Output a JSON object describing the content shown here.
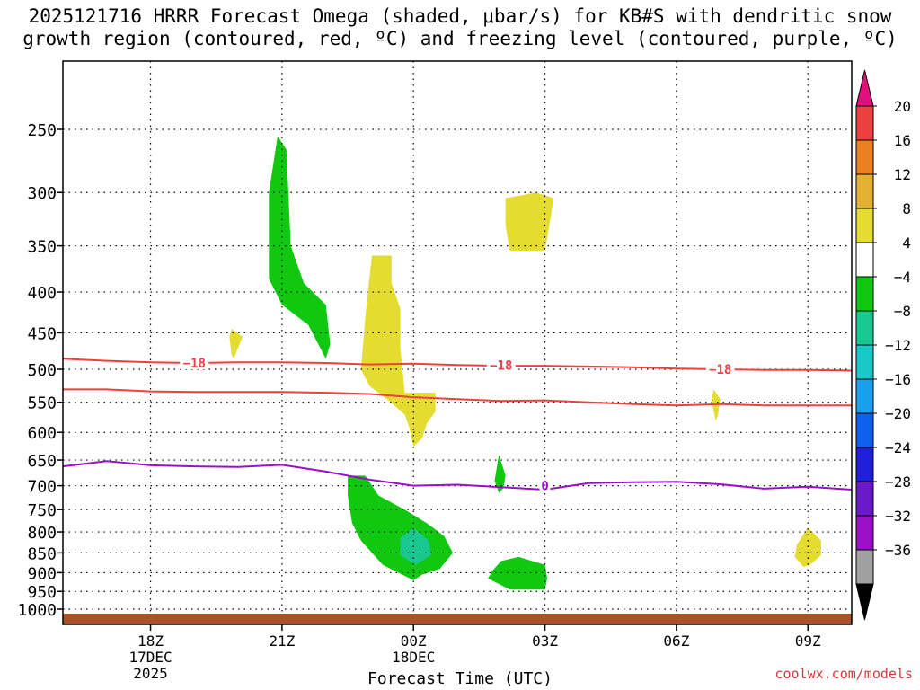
{
  "title": {
    "line1": "2025121716 HRRR Forecast Omega (shaded, μbar/s) for KB#S with dendritic snow",
    "line2": "growth region (contoured, red, ºC) and freezing level (contoured, purple, ºC)"
  },
  "credit": "coolwx.com/models",
  "chart_data": {
    "type": "heatmap",
    "xlabel": "Forecast Time (UTC)",
    "x_ticks": [
      {
        "hour": 18,
        "label": "18Z",
        "sub1": "17DEC",
        "sub2": "2025"
      },
      {
        "hour": 21,
        "label": "21Z",
        "sub1": "",
        "sub2": ""
      },
      {
        "hour": 24,
        "label": "00Z",
        "sub1": "18DEC",
        "sub2": ""
      },
      {
        "hour": 27,
        "label": "03Z",
        "sub1": "",
        "sub2": ""
      },
      {
        "hour": 30,
        "label": "06Z",
        "sub1": "",
        "sub2": ""
      },
      {
        "hour": 33,
        "label": "09Z",
        "sub1": "",
        "sub2": ""
      }
    ],
    "xlim": [
      16,
      34
    ],
    "ylim_hpa": [
      200,
      1030
    ],
    "y_ticks": [
      250,
      300,
      350,
      400,
      450,
      500,
      550,
      600,
      650,
      700,
      750,
      800,
      850,
      900,
      950,
      1000
    ],
    "grid": true,
    "colorbar": {
      "colors": [
        "#000000",
        "#a0a0a0",
        "#9b0fc8",
        "#6a19c8",
        "#2020d8",
        "#1060ee",
        "#18a0ee",
        "#18c8c8",
        "#18c890",
        "#10c810",
        "#ffffff",
        "#e4dc30",
        "#e4b030",
        "#ec8020",
        "#ec4040",
        "#e0107a"
      ],
      "bounds": [
        -36,
        -32,
        -28,
        -24,
        -20,
        -16,
        -12,
        -8,
        -4,
        4,
        8,
        12,
        16,
        20
      ],
      "labels": [
        "20",
        "16",
        "12",
        "8",
        "4",
        "−4",
        "−8",
        "−12",
        "−16",
        "−20",
        "−24",
        "−28",
        "−32",
        "−36"
      ]
    },
    "omega_regions": [
      {
        "name": "green",
        "color": "#10c810",
        "points": [
          [
            20.9,
            255
          ],
          [
            21.1,
            265
          ],
          [
            21.2,
            350
          ],
          [
            21.5,
            390
          ],
          [
            22.0,
            415
          ],
          [
            22.1,
            465
          ],
          [
            22.0,
            485
          ],
          [
            21.6,
            440
          ],
          [
            21.0,
            415
          ],
          [
            20.7,
            385
          ],
          [
            20.7,
            300
          ]
        ]
      },
      {
        "name": "yellow",
        "color": "#e4dc30",
        "points": [
          [
            19.85,
            445
          ],
          [
            20.1,
            455
          ],
          [
            19.9,
            485
          ],
          [
            19.85,
            480
          ],
          [
            19.8,
            455
          ]
        ]
      },
      {
        "name": "yellow",
        "color": "#e4dc30",
        "points": [
          [
            23.05,
            360
          ],
          [
            23.5,
            360
          ],
          [
            23.5,
            390
          ],
          [
            23.7,
            420
          ],
          [
            23.7,
            470
          ],
          [
            23.8,
            535
          ],
          [
            24.5,
            535
          ],
          [
            24.5,
            565
          ],
          [
            24.3,
            585
          ],
          [
            24.2,
            610
          ],
          [
            24.0,
            625
          ],
          [
            23.9,
            590
          ],
          [
            23.8,
            570
          ],
          [
            23.4,
            545
          ],
          [
            23.0,
            525
          ],
          [
            22.8,
            500
          ],
          [
            22.9,
            430
          ]
        ]
      },
      {
        "name": "yellow",
        "color": "#e4dc30",
        "points": [
          [
            26.1,
            305
          ],
          [
            26.8,
            300
          ],
          [
            27.2,
            305
          ],
          [
            27.1,
            330
          ],
          [
            27.0,
            355
          ],
          [
            26.2,
            355
          ],
          [
            26.1,
            330
          ]
        ]
      },
      {
        "name": "yellow",
        "color": "#e4dc30",
        "points": [
          [
            30.85,
            530
          ],
          [
            31.0,
            545
          ],
          [
            30.95,
            570
          ],
          [
            30.9,
            580
          ],
          [
            30.85,
            565
          ],
          [
            30.8,
            545
          ]
        ]
      },
      {
        "name": "yellow",
        "color": "#e4dc30",
        "points": [
          [
            33.0,
            790
          ],
          [
            33.3,
            820
          ],
          [
            33.3,
            855
          ],
          [
            33.05,
            880
          ],
          [
            32.9,
            885
          ],
          [
            32.7,
            860
          ],
          [
            32.75,
            830
          ]
        ]
      },
      {
        "name": "green",
        "color": "#10c810",
        "points": [
          [
            25.95,
            640
          ],
          [
            26.1,
            680
          ],
          [
            26.05,
            705
          ],
          [
            25.95,
            715
          ],
          [
            25.85,
            690
          ]
        ]
      },
      {
        "name": "green",
        "color": "#10c810",
        "points": [
          [
            22.5,
            680
          ],
          [
            22.9,
            680
          ],
          [
            23.2,
            720
          ],
          [
            23.8,
            750
          ],
          [
            24.3,
            780
          ],
          [
            24.7,
            810
          ],
          [
            24.9,
            850
          ],
          [
            24.6,
            890
          ],
          [
            24.2,
            905
          ],
          [
            24.0,
            920
          ],
          [
            23.3,
            880
          ],
          [
            22.8,
            820
          ],
          [
            22.6,
            780
          ],
          [
            22.5,
            720
          ]
        ]
      },
      {
        "name": "teal",
        "color": "#18c890",
        "points": [
          [
            24.0,
            790
          ],
          [
            24.35,
            820
          ],
          [
            24.4,
            855
          ],
          [
            24.05,
            880
          ],
          [
            23.7,
            855
          ],
          [
            23.7,
            815
          ]
        ]
      },
      {
        "name": "green",
        "color": "#10c810",
        "points": [
          [
            26.0,
            870
          ],
          [
            26.4,
            860
          ],
          [
            27.0,
            880
          ],
          [
            27.05,
            915
          ],
          [
            27.0,
            945
          ],
          [
            26.2,
            945
          ],
          [
            25.7,
            915
          ],
          [
            25.8,
            895
          ]
        ]
      }
    ],
    "dgz_contours": [
      {
        "label": "−18",
        "label_at": [
          19.0,
          491
        ],
        "points": [
          [
            16,
            485
          ],
          [
            17,
            488
          ],
          [
            18,
            490
          ],
          [
            19,
            491
          ],
          [
            20,
            490
          ],
          [
            21,
            490
          ],
          [
            22,
            491
          ],
          [
            23,
            493
          ],
          [
            24,
            492
          ],
          [
            25,
            494
          ],
          [
            26,
            495
          ],
          [
            27,
            495
          ],
          [
            28,
            496
          ],
          [
            29,
            497
          ],
          [
            30,
            499
          ],
          [
            31,
            500
          ],
          [
            32,
            501
          ],
          [
            33,
            501
          ],
          [
            34,
            502
          ]
        ]
      },
      {
        "label": "−18",
        "label_at": [
          26.0,
          494
        ],
        "points": []
      },
      {
        "label": "−18",
        "label_at": [
          31.0,
          500
        ],
        "points": []
      },
      {
        "label": "",
        "label_at": null,
        "points": [
          [
            16,
            530
          ],
          [
            17,
            530
          ],
          [
            18,
            533
          ],
          [
            19,
            534
          ],
          [
            20,
            534
          ],
          [
            21,
            534
          ],
          [
            22,
            535
          ],
          [
            23,
            537
          ],
          [
            24,
            542
          ],
          [
            25,
            545
          ],
          [
            26,
            548
          ],
          [
            27,
            547
          ],
          [
            28,
            550
          ],
          [
            29,
            553
          ],
          [
            30,
            555
          ],
          [
            31,
            553
          ],
          [
            32,
            555
          ],
          [
            33,
            555
          ],
          [
            34,
            555
          ]
        ]
      }
    ],
    "freezing_contour": {
      "label": "0",
      "label_at": [
        27.0,
        700
      ],
      "points": [
        [
          16,
          662
        ],
        [
          17,
          652
        ],
        [
          18,
          660
        ],
        [
          19,
          662
        ],
        [
          20,
          663
        ],
        [
          21,
          659
        ],
        [
          22,
          672
        ],
        [
          23,
          688
        ],
        [
          24,
          700
        ],
        [
          25,
          698
        ],
        [
          26,
          703
        ],
        [
          27,
          708
        ],
        [
          28,
          695
        ],
        [
          29,
          693
        ],
        [
          30,
          692
        ],
        [
          31,
          697
        ],
        [
          32,
          706
        ],
        [
          33,
          702
        ],
        [
          34,
          708
        ]
      ]
    },
    "ground_hpa": 1013
  }
}
